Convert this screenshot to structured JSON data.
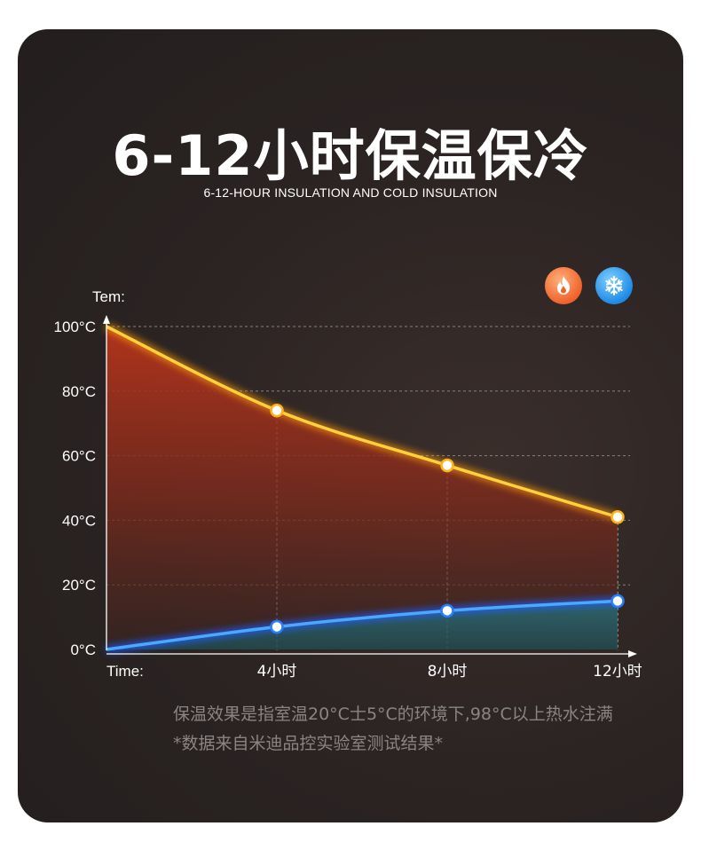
{
  "header": {
    "title": "6-12小时保温保冷",
    "subtitle": "6-12-HOUR INSULATION AND COLD INSULATION"
  },
  "icons": [
    "fire-icon",
    "snowflake-icon"
  ],
  "colors": {
    "hot_line": "#ffc21a",
    "cold_line": "#1f6dff",
    "background": "#2a2322"
  },
  "chart_data": {
    "type": "area",
    "ylabel": "Tem:",
    "xlabel": "Time:",
    "ylim": [
      0,
      100
    ],
    "yticks": [
      0,
      20,
      40,
      60,
      80,
      100
    ],
    "ytick_labels": [
      "0°C",
      "20°C",
      "40°C",
      "60°C",
      "80°C",
      "100°C"
    ],
    "xlim": [
      0,
      12
    ],
    "xticks": [
      4,
      8,
      12
    ],
    "xtick_labels": [
      "4小时",
      "8小时",
      "12小时"
    ],
    "grid": true,
    "series": [
      {
        "x": [
          0,
          4,
          8,
          12
        ],
        "values": [
          100,
          74,
          57,
          41
        ]
      },
      {
        "x": [
          0,
          4,
          8,
          12
        ],
        "values": [
          0,
          7,
          12,
          15
        ]
      }
    ]
  },
  "notes": {
    "line1": "保温效果是指室温20°C士5°C的环境下,98°C以上热水注满",
    "line2": "*数据来自米迪品控实验室测试结果*"
  }
}
